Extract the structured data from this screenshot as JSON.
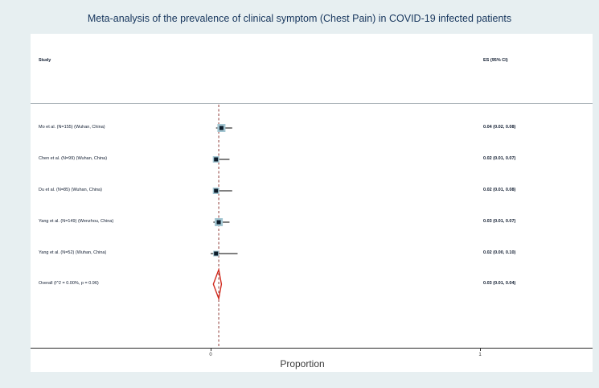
{
  "page": {
    "background_color": "#e7eff1"
  },
  "chart_data": {
    "type": "forest",
    "title": "Meta-analysis of the prevalence of clinical symptom (Chest Pain) in COVID-19 infected patients",
    "column_headers": {
      "study": "Study",
      "effect": "ES (95% CI)"
    },
    "xlabel": "Proportion",
    "xlim": [
      0,
      1
    ],
    "x_ticks": [
      {
        "value": 0,
        "label": "0"
      },
      {
        "value": 1,
        "label": "1"
      }
    ],
    "grid": false,
    "null_line_x": 0.03,
    "legend_position": "none",
    "studies": [
      {
        "label": "Mo et al. (N=155) (Wuhan, China)",
        "es": 0.04,
        "ci_low": 0.02,
        "ci_high": 0.08,
        "es_text": "0.04 (0.02, 0.08)",
        "n": 155
      },
      {
        "label": "Chen et al. (N=99) (Wuhan, China)",
        "es": 0.02,
        "ci_low": 0.01,
        "ci_high": 0.07,
        "es_text": "0.02 (0.01, 0.07)",
        "n": 99
      },
      {
        "label": "Du et al. (N=85) (Wuhan, China)",
        "es": 0.02,
        "ci_low": 0.01,
        "ci_high": 0.08,
        "es_text": "0.02 (0.01, 0.08)",
        "n": 85
      },
      {
        "label": "Yang et al. (N=149) (Wenzhou, China)",
        "es": 0.03,
        "ci_low": 0.01,
        "ci_high": 0.07,
        "es_text": "0.03 (0.01, 0.07)",
        "n": 149
      },
      {
        "label": "Yang et al. (N=52) (Wuhan, China)",
        "es": 0.02,
        "ci_low": 0.0,
        "ci_high": 0.1,
        "es_text": "0.02 (0.00, 0.10)",
        "n": 52
      }
    ],
    "overall": {
      "label": "Overall  (I^2 = 0.00%, p = 0.96)",
      "es": 0.03,
      "ci_low": 0.01,
      "ci_high": 0.04,
      "es_text": "0.03 (0.01, 0.04)"
    }
  },
  "colors": {
    "title": "#17365d",
    "text": "#101c30",
    "null_line": "#8e3b36",
    "whisker": "#000000",
    "marker": "#0d1c2a",
    "marker_halo": "#a3c6d2",
    "diamond": "#d12b1f",
    "axis": "#2b2b2b",
    "separator": "#aab2b8"
  }
}
